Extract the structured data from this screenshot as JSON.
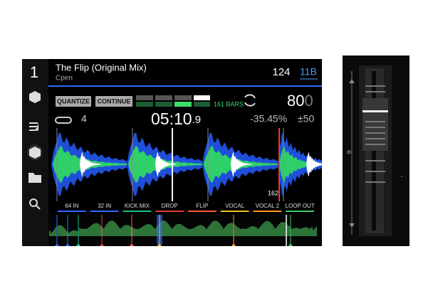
{
  "deck": {
    "number": "1",
    "title": "The Flip (Original Mix)",
    "artist": "Cpen",
    "bpm": "124",
    "key": "11B"
  },
  "controls": {
    "quantize": "QUANTIZE",
    "continue": "CONTINUE",
    "bars": "161 BARS",
    "tempo_main": "80",
    "tempo_dim": "0",
    "loop": "4",
    "time_main": "05:10",
    "time_tenth": ".9",
    "pitch": "-35.45%",
    "range": "±50",
    "marker": "162"
  },
  "cues": [
    {
      "label": "64 IN",
      "color": "#2f6bff"
    },
    {
      "label": "32 IN",
      "color": "#2f6bff"
    },
    {
      "label": "KICK MIX",
      "color": "#19c38a"
    },
    {
      "label": "DROP",
      "color": "#e83a3a"
    },
    {
      "label": "FLIP",
      "color": "#ff5a3a"
    },
    {
      "label": "VOCAL",
      "color": "#f2c21b"
    },
    {
      "label": "VOCAL 2",
      "color": "#ff9a1f"
    },
    {
      "label": "LOOP OUT",
      "color": "#3fcf6a"
    }
  ]
}
